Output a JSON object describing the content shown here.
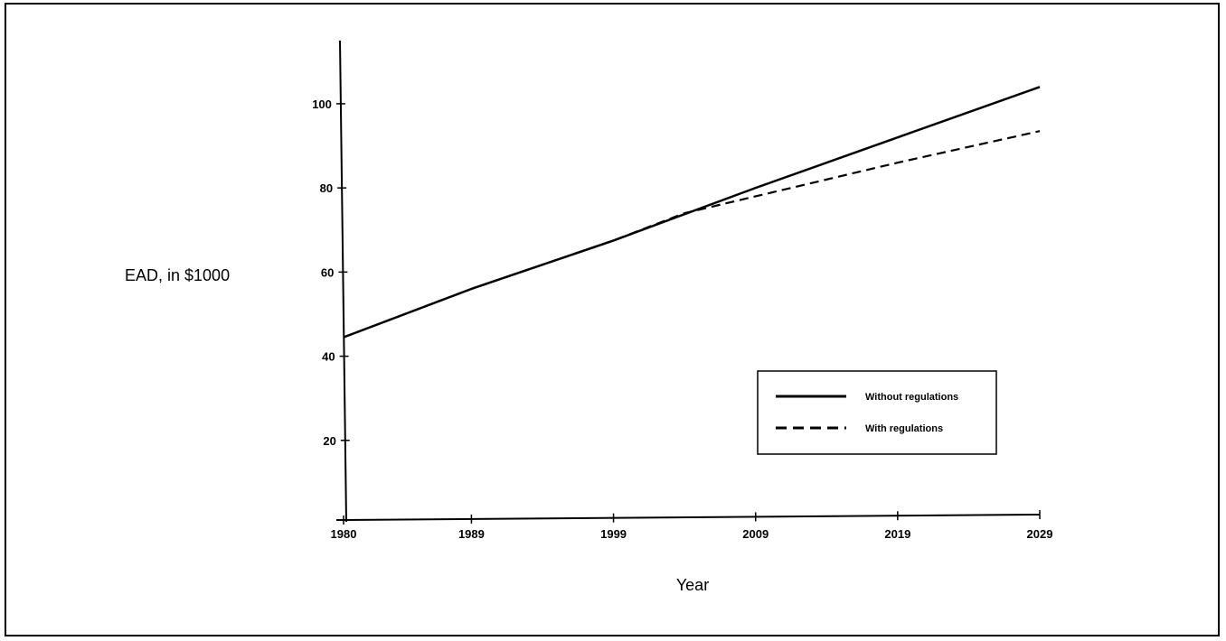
{
  "chart_data": {
    "type": "line",
    "title": "",
    "xlabel": "Year",
    "ylabel": "EAD, in $1000",
    "x_ticks": [
      1980,
      1989,
      1999,
      2009,
      2019,
      2029
    ],
    "y_ticks": [
      20,
      40,
      60,
      80,
      100
    ],
    "xlim": [
      1980,
      2029
    ],
    "ylim": [
      0,
      115
    ],
    "grid": false,
    "legend_position": "lower-right",
    "series": [
      {
        "name": "Without regulations",
        "style": "solid",
        "color": "#000000",
        "x": [
          1980,
          1989,
          1999,
          2009,
          2019,
          2029
        ],
        "y": [
          44.5,
          56,
          67.5,
          80,
          92,
          104
        ]
      },
      {
        "name": "With regulations",
        "style": "dashed",
        "color": "#000000",
        "x": [
          1980,
          1989,
          1999,
          2004,
          2009,
          2019,
          2029
        ],
        "y": [
          44.5,
          56,
          67.5,
          74,
          78,
          86,
          93.5
        ]
      }
    ]
  }
}
